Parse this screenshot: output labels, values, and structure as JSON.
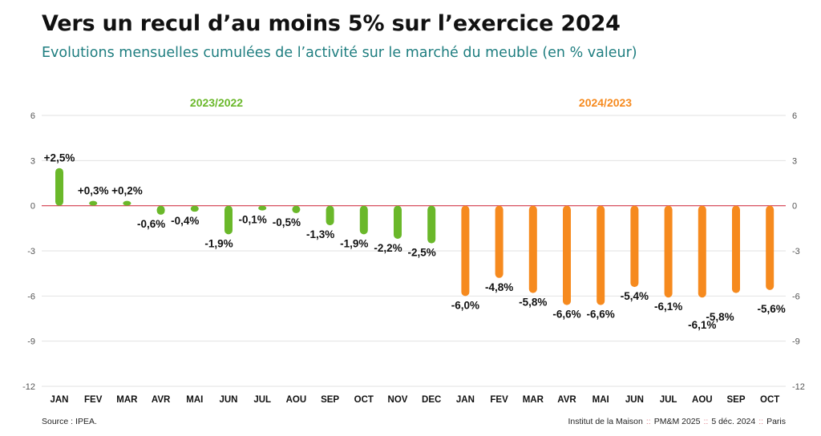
{
  "title": "Vers un recul d’au moins 5% sur l’exercice 2024",
  "subtitle": "Evolutions mensuelles cumulées de l’activité sur le marché du meuble (en % valeur)",
  "footer": {
    "source": "Source : IPEA.",
    "credit_parts": [
      "Institut de la Maison",
      "PM&M 2025",
      "5 déc. 2024",
      "Paris"
    ],
    "separator": "::"
  },
  "colors": {
    "period_1": "#6ab82a",
    "period_2": "#f68a1e",
    "zero_line": "#d33a4c",
    "grid": "#e2e2e2",
    "subtitle": "#1f7e80"
  },
  "chart_data": {
    "type": "bar",
    "categories": [
      "JAN",
      "FEV",
      "MAR",
      "AVR",
      "MAI",
      "JUN",
      "JUL",
      "AOU",
      "SEP",
      "OCT",
      "NOV",
      "DEC",
      "JAN",
      "FEV",
      "MAR",
      "AVR",
      "MAI",
      "JUN",
      "JUL",
      "AOU",
      "SEP",
      "OCT"
    ],
    "values": [
      2.5,
      0.3,
      0.2,
      -0.6,
      -0.4,
      -1.9,
      -0.1,
      -0.5,
      -1.3,
      -1.9,
      -2.2,
      -2.5,
      -6.0,
      -4.8,
      -5.8,
      -6.6,
      -6.6,
      -5.4,
      -6.1,
      -6.1,
      -5.8,
      -5.6
    ],
    "data_labels": [
      "+2,5%",
      "+0,3%",
      "+0,2%",
      "-0,6%",
      "-0,4%",
      "-1,9%",
      "-0,1%",
      "-0,5%",
      "-1,3%",
      "-1,9%",
      "-2,2%",
      "-2,5%",
      "-6,0%",
      "-4,8%",
      "-5,8%",
      "-6,6%",
      "-6,6%",
      "-5,4%",
      "-6,1%",
      "-6,1%",
      "-5,8%",
      "-5,6%"
    ],
    "periods": [
      {
        "label": "2023/2022",
        "start": 0,
        "end": 11,
        "color": "#6ab82a"
      },
      {
        "label": "2024/2023",
        "start": 12,
        "end": 21,
        "color": "#f68a1e"
      }
    ],
    "ylim": [
      -12,
      6
    ],
    "yticks": [
      6,
      3,
      0,
      -3,
      -6,
      -9,
      -12
    ],
    "grid": true,
    "y_axis_both_sides": true
  }
}
